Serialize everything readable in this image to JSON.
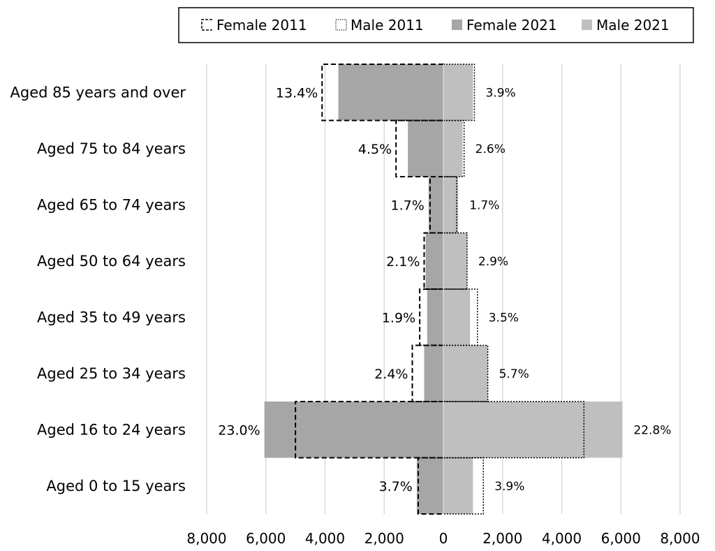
{
  "chart_data": {
    "type": "bar",
    "orientation": "horizontal",
    "layout": "population-pyramid",
    "categories": [
      "Aged 85 years and over",
      "Aged 75 to 84 years",
      "Aged 65 to 74 years",
      "Aged 50 to 64 years",
      "Aged 35 to 49 years",
      "Aged 25 to 34 years",
      "Aged 16 to 24 years",
      "Aged 0 to 15 years"
    ],
    "series": [
      {
        "name": "Female 2011",
        "style": "dashed-outline",
        "side": "left",
        "values": [
          4100,
          1600,
          450,
          650,
          800,
          1050,
          5000,
          850
        ]
      },
      {
        "name": "Male 2011",
        "style": "dotted-outline",
        "side": "right",
        "values": [
          1050,
          700,
          450,
          800,
          1150,
          1500,
          4750,
          1350
        ]
      },
      {
        "name": "Female 2021",
        "style": "fill",
        "color": "#a6a6a6",
        "side": "left",
        "values": [
          3550,
          1200,
          500,
          600,
          550,
          650,
          6050,
          900
        ]
      },
      {
        "name": "Male 2021",
        "style": "fill",
        "color": "#bfbfbf",
        "side": "right",
        "values": [
          1000,
          650,
          500,
          800,
          900,
          1500,
          6050,
          1000
        ]
      }
    ],
    "data_labels": {
      "female": [
        "13.4%",
        "4.5%",
        "1.7%",
        "2.1%",
        "1.9%",
        "2.4%",
        "23.0%",
        "3.7%"
      ],
      "male": [
        "3.9%",
        "2.6%",
        "1.7%",
        "2.9%",
        "3.5%",
        "5.7%",
        "22.8%",
        "3.9%"
      ]
    },
    "x_ticks": [
      "8,000",
      "6,000",
      "4,000",
      "2,000",
      "0",
      "2,000",
      "4,000",
      "6,000",
      "8,000"
    ],
    "xlim": [
      -8000,
      8000
    ],
    "xlabel": "",
    "ylabel": "",
    "title": "",
    "grid": "vertical",
    "legend_position": "top",
    "legend": [
      "Female 2011",
      "Male 2011",
      "Female 2021",
      "Male 2021"
    ],
    "colors": {
      "female_2021": "#a6a6a6",
      "male_2021": "#bfbfbf",
      "grid": "#d9d9d9",
      "outline": "#000000"
    }
  }
}
